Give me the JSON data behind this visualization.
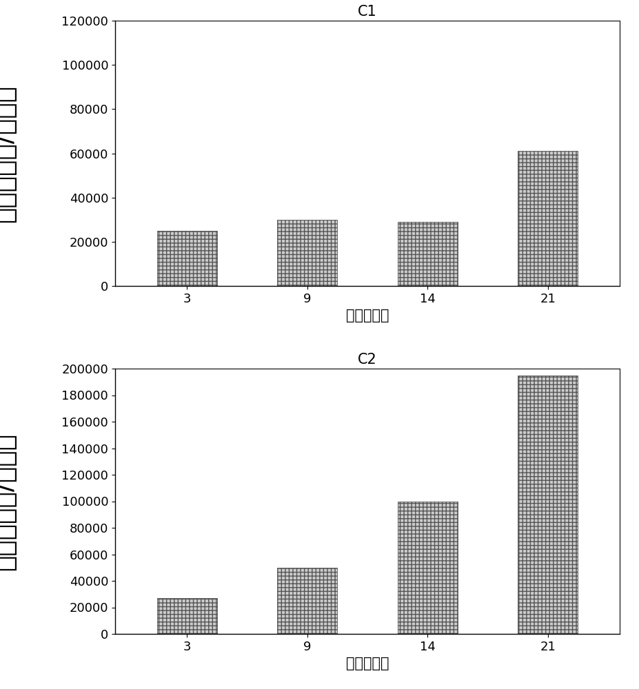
{
  "c1": {
    "title": "C1",
    "x_labels": [
      "3",
      "9",
      "14",
      "21"
    ],
    "values": [
      25000,
      30000,
      29000,
      61000
    ],
    "ylim": [
      0,
      120000
    ],
    "yticks": [
      0,
      20000,
      40000,
      60000,
      80000,
      100000,
      120000
    ],
    "xlabel": "时间（天）",
    "ylabel": "浓度（皮克/毫升）"
  },
  "c2": {
    "title": "C2",
    "x_labels": [
      "3",
      "9",
      "14",
      "21"
    ],
    "values": [
      27000,
      50000,
      100000,
      195000
    ],
    "ylim": [
      0,
      200000
    ],
    "yticks": [
      0,
      20000,
      40000,
      60000,
      80000,
      100000,
      120000,
      140000,
      160000,
      180000,
      200000
    ],
    "xlabel": "时间（天）",
    "ylabel": "浓度（皮克/毫升）"
  },
  "bar_width": 0.5,
  "hatch_pattern": "+++",
  "bar_color": "#cccccc",
  "bar_edgecolor": "#555555",
  "bg_color": "#ffffff",
  "title_fontsize": 15,
  "xlabel_fontsize": 15,
  "tick_fontsize": 13,
  "ylabel_fontsize": 22,
  "ylabel_big_fontsize": 28
}
